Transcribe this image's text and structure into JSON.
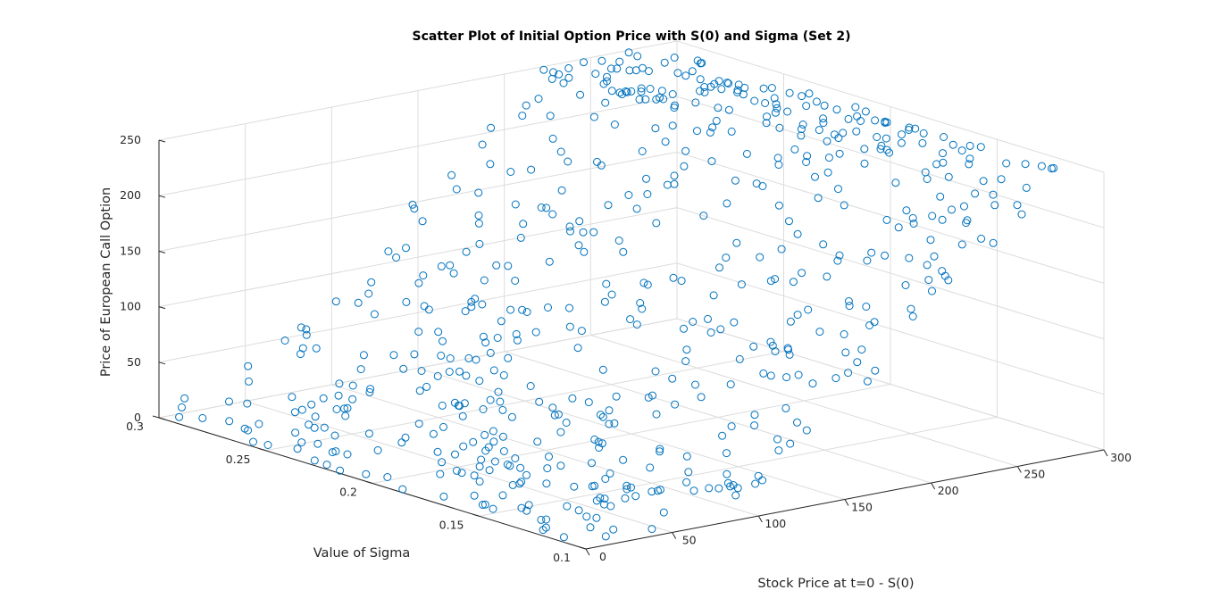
{
  "chart_data": {
    "type": "scatter",
    "title": "Scatter Plot of Initial Option Price with S(0) and Sigma (Set 2)",
    "xlabel": "Stock Price at t=0 - S(0)",
    "ylabel": "Value of Sigma",
    "zlabel": "Price of European Call Option",
    "xlim": [
      0,
      300
    ],
    "ylim": [
      0.1,
      0.3
    ],
    "zlim": [
      0,
      250
    ],
    "x_ticks": [
      "0",
      "50",
      "100",
      "150",
      "200",
      "250",
      "300"
    ],
    "y_ticks": [
      "0.1",
      "0.15",
      "0.2",
      "0.25",
      "0.3"
    ],
    "z_ticks": [
      "0",
      "50",
      "100",
      "150",
      "200",
      "250"
    ],
    "grid": true,
    "marker": "circle",
    "color": "#0072bd",
    "n_points": 600,
    "x": [],
    "y": [],
    "z": []
  }
}
